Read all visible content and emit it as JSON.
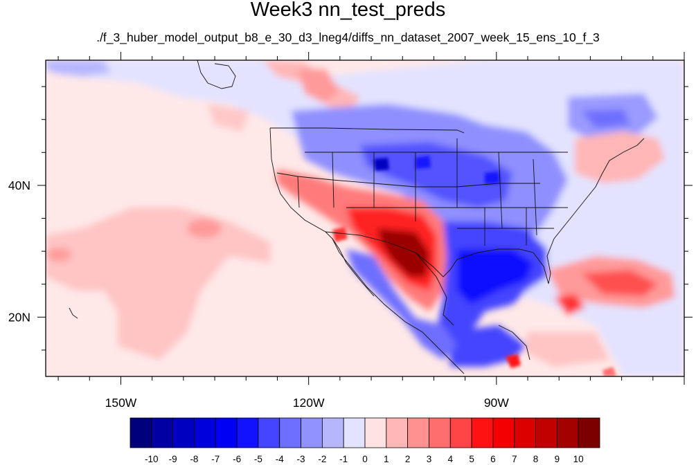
{
  "title": "Week3 nn_test_preds",
  "subtitle": "./f_3_huber_model_output_b8_e_30_d3_lneg4/diffs_nn_dataset_2007_week_15_ens_10_f_3",
  "map": {
    "lon_range": [
      -162,
      -60
    ],
    "lat_range": [
      11,
      59
    ],
    "lon_ticks": [
      {
        "value": -150,
        "label": "150W"
      },
      {
        "value": -120,
        "label": "120W"
      },
      {
        "value": -90,
        "label": "90W"
      }
    ],
    "lat_ticks": [
      {
        "value": 40,
        "label": "40N"
      },
      {
        "value": 20,
        "label": "20N"
      }
    ]
  },
  "colorbar": {
    "colors": [
      "#00007d",
      "#0000a3",
      "#0000c1",
      "#0000dc",
      "#0000f5",
      "#1212ff",
      "#4545ff",
      "#6e6eff",
      "#9191ff",
      "#b6b6ff",
      "#e3e3ff",
      "#ffe3e3",
      "#ffb6b6",
      "#ff9191",
      "#ff6e6e",
      "#ff4545",
      "#ff1212",
      "#f50000",
      "#dc0000",
      "#c10000",
      "#a30000",
      "#7d0000"
    ],
    "labels": [
      "-10",
      "-9",
      "-8",
      "-7",
      "-6",
      "-5",
      "-4",
      "-3",
      "-2",
      "-1",
      "0",
      "1",
      "2",
      "3",
      "4",
      "5",
      "6",
      "7",
      "8",
      "9",
      "10"
    ]
  }
}
